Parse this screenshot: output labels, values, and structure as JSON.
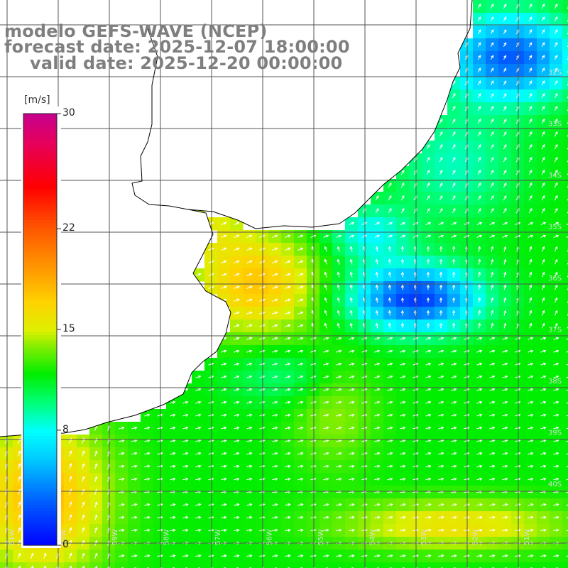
{
  "title": {
    "line1": "modelo GEFS-WAVE (NCEP)",
    "line2": "forecast date: 2025-12-07 18:00:00",
    "line3": "valid date: 2025-12-20 00:00:00"
  },
  "colorbar": {
    "unit": "[m/s]",
    "ticks": [
      "30",
      "22",
      "15",
      "8",
      "0"
    ],
    "tick_values": [
      30,
      22,
      15,
      8,
      0
    ],
    "range": [
      0,
      30
    ]
  },
  "lat_labels": [
    "32S",
    "33S",
    "34S",
    "35S",
    "36S",
    "37S",
    "38S",
    "39S",
    "40S"
  ],
  "lon_labels": [
    "61W",
    "60W",
    "59W",
    "58W",
    "57W",
    "56W",
    "55W",
    "54W",
    "53W",
    "52W",
    "51W"
  ],
  "colors": {
    "land": "#ffffff",
    "grid": "#555555",
    "coast": "#000000",
    "arrow": "#ffffff",
    "title": "#7f7f7f"
  },
  "chart_data": {
    "type": "heatmap",
    "title": "",
    "xlabel": "",
    "ylabel": "",
    "variable": "wind speed",
    "units": "m/s",
    "colormap_range": [
      0,
      30
    ],
    "overlay": "wind direction vectors (white arrows)",
    "regions": [
      {
        "area": "coastal band NW (Rio de la Plata mouth)",
        "speed": 16
      },
      {
        "area": "Rio de la Plata estuary",
        "speed": 17
      },
      {
        "area": "central shelf",
        "speed": 12
      },
      {
        "area": "offshore low-wind core",
        "speed": 3
      },
      {
        "area": "NE corner offshore",
        "speed": 3
      },
      {
        "area": "SW corner",
        "speed": 18
      },
      {
        "area": "SE bottom band",
        "speed": 16
      }
    ]
  }
}
